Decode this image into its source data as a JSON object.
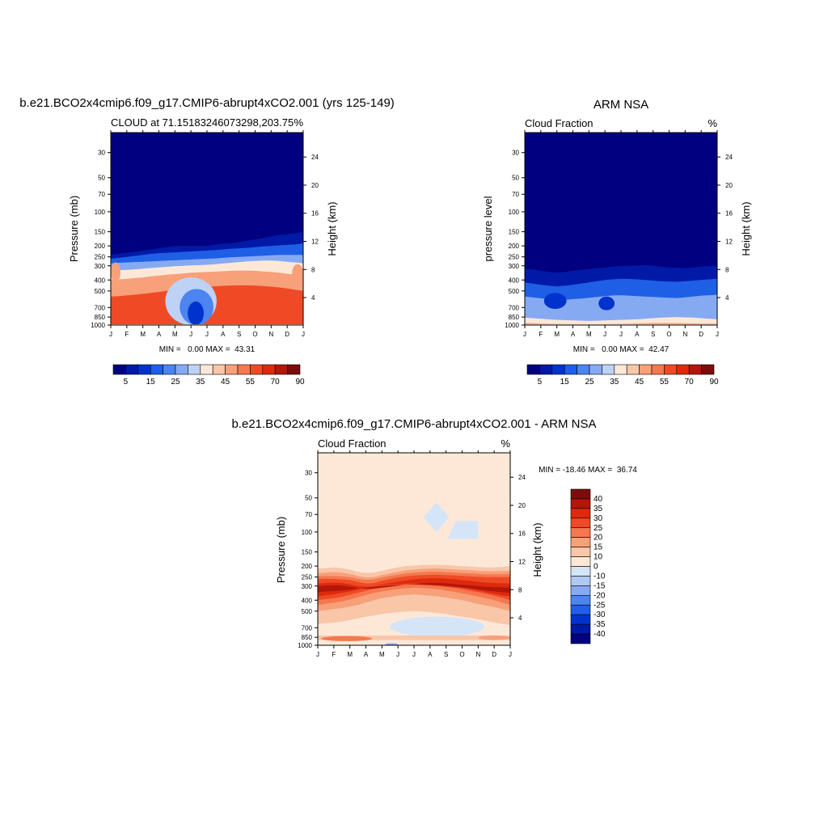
{
  "chart_data": [
    {
      "type": "heatmap",
      "title": "b.e21.BCO2x4cmip6.f09_g17.CMIP6-abrupt4xCO2.001 (yrs 125-149)",
      "left_string": "CLOUD at 71.15183246073298,203.75",
      "right_string": "%",
      "ylabel": "Pressure (mb)",
      "ylabel_right": "Height (km)",
      "xticks": [
        "J",
        "F",
        "M",
        "A",
        "M",
        "J",
        "J",
        "A",
        "S",
        "O",
        "N",
        "D",
        "J"
      ],
      "yticks": [
        30,
        50,
        70,
        100,
        150,
        200,
        250,
        300,
        400,
        500,
        700,
        850,
        1000
      ],
      "yticks_right": [
        24,
        20,
        16,
        12,
        8,
        4
      ],
      "minmax": "MIN =   0.00 MAX =  43.31",
      "colorbar_labels": [
        "5",
        "15",
        "25",
        "35",
        "45",
        "55",
        "70",
        "90"
      ],
      "colorbar_colors": [
        "#000080",
        "#0019a6",
        "#0033cc",
        "#1f5fe6",
        "#4c84f0",
        "#86aaf2",
        "#bed2f6",
        "#fde8d8",
        "#f9c6a8",
        "#f7a07a",
        "#f5784f",
        "#ef4a26",
        "#dd2a0d",
        "#b3160a",
        "#7d0d0c"
      ],
      "contour_bands": [
        {
          "value": 0,
          "profile": [
            240,
            235,
            230,
            225,
            220,
            215,
            210,
            205,
            200,
            200,
            200,
            200,
            200,
            195,
            190,
            190,
            185,
            180,
            175,
            170,
            165,
            160,
            158,
            155,
            150
          ]
        },
        {
          "value": 5,
          "profile": [
            260,
            255,
            250,
            245,
            240,
            235,
            232,
            230,
            228,
            226,
            224,
            222,
            220,
            218,
            215,
            212,
            210,
            208,
            205,
            202,
            200,
            198,
            196,
            194,
            190
          ]
        },
        {
          "value": 15,
          "profile": [
            285,
            282,
            280,
            278,
            276,
            274,
            272,
            270,
            268,
            266,
            264,
            262,
            260,
            258,
            255,
            252,
            250,
            248,
            246,
            244,
            242,
            240,
            240,
            240,
            240
          ]
        },
        {
          "value": 25,
          "profile": [
            330,
            328,
            326,
            322,
            318,
            314,
            310,
            306,
            302,
            300,
            298,
            296,
            294,
            290,
            286,
            282,
            278,
            274,
            272,
            270,
            270,
            272,
            276,
            280,
            285
          ]
        },
        {
          "value": 35,
          "profile": [
            400,
            395,
            390,
            385,
            380,
            372,
            365,
            360,
            355,
            350,
            345,
            342,
            340,
            338,
            335,
            332,
            330,
            330,
            332,
            336,
            340,
            345,
            352,
            360,
            370
          ]
        },
        {
          "value": 45,
          "profile": [
            560,
            555,
            548,
            540,
            530,
            520,
            510,
            500,
            490,
            480,
            472,
            466,
            460,
            455,
            450,
            448,
            446,
            446,
            448,
            452,
            458,
            466,
            476,
            488,
            500
          ]
        }
      ],
      "warm_patches": [
        {
          "value": 35,
          "months": [
            0,
            0.6
          ],
          "p": [
            280,
            420
          ]
        },
        {
          "value": 35,
          "months": [
            11.3,
            12
          ],
          "p": [
            290,
            420
          ]
        }
      ],
      "core": [
        {
          "value": 25,
          "months": [
            3.4,
            6.6
          ],
          "p": [
            380,
            1000
          ]
        },
        {
          "value": 15,
          "months": [
            4.3,
            6.4
          ],
          "p": [
            480,
            1000
          ]
        },
        {
          "value": 5,
          "months": [
            4.8,
            5.8
          ],
          "p": [
            620,
            1000
          ]
        }
      ]
    },
    {
      "type": "heatmap",
      "title": "ARM NSA",
      "left_string": "Cloud Fraction",
      "right_string": "%",
      "ylabel": "pressure level",
      "ylabel_right": "Height (km)",
      "xticks": [
        "J",
        "F",
        "M",
        "A",
        "M",
        "J",
        "J",
        "A",
        "S",
        "O",
        "N",
        "D",
        "J"
      ],
      "yticks": [
        30,
        50,
        70,
        100,
        150,
        200,
        250,
        300,
        400,
        500,
        700,
        850,
        1000
      ],
      "yticks_right": [
        24,
        20,
        16,
        12,
        8,
        4
      ],
      "minmax": "MIN =   0.00 MAX =  42.47",
      "colorbar_labels": [
        "5",
        "15",
        "25",
        "35",
        "45",
        "55",
        "70",
        "90"
      ],
      "colorbar_colors": [
        "#000080",
        "#0019a6",
        "#0033cc",
        "#1f5fe6",
        "#4c84f0",
        "#86aaf2",
        "#bed2f6",
        "#fde8d8",
        "#f9c6a8",
        "#f7a07a",
        "#f5784f",
        "#ef4a26",
        "#dd2a0d",
        "#b3160a",
        "#7d0d0c"
      ],
      "contour_bands": [
        {
          "value": 0,
          "profile": [
            320,
            322,
            330,
            340,
            345,
            340,
            330,
            325,
            320,
            315,
            310,
            305,
            300,
            300,
            298,
            296,
            300,
            305,
            310,
            312,
            314,
            310,
            305,
            300,
            300
          ]
        },
        {
          "value": 5,
          "profile": [
            420,
            430,
            440,
            450,
            455,
            450,
            440,
            430,
            420,
            410,
            400,
            395,
            390,
            392,
            395,
            400,
            405,
            410,
            412,
            415,
            410,
            405,
            400,
            395,
            390
          ]
        },
        {
          "value": 15,
          "profile": [
            560,
            570,
            580,
            590,
            600,
            600,
            590,
            585,
            575,
            565,
            555,
            548,
            545,
            550,
            555,
            560,
            565,
            570,
            575,
            578,
            570,
            560,
            550,
            545,
            540
          ]
        },
        {
          "value": 25,
          "profile": [
            860,
            870,
            880,
            890,
            900,
            905,
            910,
            915,
            920,
            915,
            910,
            905,
            900,
            895,
            890,
            880,
            870,
            860,
            855,
            850,
            855,
            860,
            870,
            880,
            890
          ]
        },
        {
          "value": 35,
          "profile": [
            960,
            965,
            970,
            975,
            978,
            980,
            982,
            984,
            986,
            984,
            982,
            980,
            978,
            975,
            970,
            965,
            960,
            958,
            960,
            962,
            965,
            968,
            970,
            972,
            975
          ]
        }
      ],
      "warm_patches": [],
      "core": [
        {
          "value": 5,
          "months": [
            1.2,
            2.6
          ],
          "p": [
            520,
            720
          ]
        },
        {
          "value": 5,
          "months": [
            4.6,
            5.6
          ],
          "p": [
            560,
            740
          ]
        }
      ]
    },
    {
      "type": "heatmap",
      "title": "b.e21.BCO2x4cmip6.f09_g17.CMIP6-abrupt4xCO2.001 - ARM NSA",
      "left_string": "Cloud Fraction",
      "right_string": "%",
      "ylabel": "Pressure (mb)",
      "ylabel_right": "Height (km)",
      "xticks": [
        "J",
        "F",
        "M",
        "A",
        "M",
        "J",
        "J",
        "A",
        "S",
        "O",
        "N",
        "D",
        "J"
      ],
      "yticks": [
        30,
        50,
        70,
        100,
        150,
        200,
        250,
        300,
        400,
        500,
        700,
        850,
        1000
      ],
      "yticks_right": [
        24,
        20,
        16,
        12,
        8,
        4
      ],
      "minmax": "MIN = -18.46 MAX =  36.74",
      "colorbar_labels": [
        "40",
        "35",
        "30",
        "25",
        "20",
        "15",
        "10",
        "0",
        "-10",
        "-15",
        "-20",
        "-25",
        "-30",
        "-35",
        "-40"
      ],
      "colorbar_colors": [
        "#7d0d0c",
        "#b3160a",
        "#dd2a0d",
        "#ef4a26",
        "#f5784f",
        "#f7a07a",
        "#f9c6a8",
        "#fde8d8",
        "#d5e5f8",
        "#b0c9f2",
        "#86aaf2",
        "#4c84f0",
        "#1f5fe6",
        "#0033cc",
        "#0019a6",
        "#000080"
      ],
      "diff_layers": [
        {
          "color": "#f9c6a8",
          "top": [
            210,
            208,
            205,
            208,
            215,
            225,
            230,
            228,
            220,
            212,
            205,
            200,
            198,
            196,
            195,
            195,
            196,
            198,
            200,
            202,
            204,
            206,
            205,
            204,
            200
          ],
          "bottom": [
            650,
            640,
            630,
            620,
            600,
            580,
            560,
            545,
            530,
            520,
            510,
            505,
            500,
            505,
            510,
            520,
            530,
            545,
            560,
            575,
            590,
            610,
            630,
            650,
            660
          ]
        },
        {
          "color": "#f7a07a",
          "top": [
            230,
            228,
            226,
            228,
            235,
            245,
            252,
            250,
            240,
            232,
            225,
            218,
            215,
            212,
            210,
            210,
            212,
            214,
            216,
            218,
            220,
            222,
            222,
            222,
            220
          ],
          "bottom": [
            500,
            490,
            480,
            470,
            455,
            440,
            420,
            400,
            385,
            375,
            365,
            360,
            355,
            360,
            365,
            372,
            380,
            390,
            400,
            415,
            430,
            445,
            460,
            480,
            500
          ]
        },
        {
          "color": "#f5784f",
          "top": [
            245,
            245,
            245,
            246,
            250,
            258,
            265,
            262,
            252,
            244,
            238,
            232,
            228,
            226,
            224,
            224,
            226,
            228,
            230,
            232,
            234,
            236,
            236,
            236,
            235
          ],
          "bottom": [
            440,
            430,
            420,
            410,
            395,
            378,
            360,
            345,
            335,
            325,
            318,
            314,
            310,
            312,
            315,
            320,
            328,
            338,
            348,
            360,
            372,
            386,
            400,
            420,
            440
          ]
        },
        {
          "color": "#ef4a26",
          "top": [
            260,
            260,
            260,
            262,
            266,
            275,
            285,
            282,
            270,
            260,
            252,
            246,
            242,
            240,
            238,
            238,
            240,
            242,
            244,
            246,
            248,
            250,
            250,
            250,
            250
          ],
          "bottom": [
            400,
            392,
            384,
            374,
            360,
            345,
            330,
            318,
            308,
            300,
            295,
            292,
            290,
            292,
            295,
            300,
            306,
            312,
            320,
            330,
            340,
            352,
            365,
            380,
            400
          ]
        },
        {
          "color": "#dd2a0d",
          "top": [
            285,
            282,
            280,
            282,
            290,
            300,
            305,
            300,
            290,
            282,
            275,
            268,
            262,
            258,
            256,
            256,
            258,
            262,
            266,
            270,
            275,
            280,
            282,
            284,
            285
          ],
          "bottom": [
            370,
            362,
            355,
            345,
            335,
            322,
            310,
            300,
            295,
            290,
            288,
            286,
            284,
            286,
            288,
            292,
            296,
            300,
            308,
            318,
            328,
            340,
            352,
            362,
            370
          ]
        },
        {
          "color": "#b3160a",
          "top": [
            300,
            298,
            296,
            298,
            305,
            312,
            318,
            316,
            310,
            304,
            298,
            292,
            288,
            284,
            282,
            282,
            284,
            288,
            292,
            296,
            300,
            304,
            306,
            308,
            310
          ],
          "bottom": [
            340,
            336,
            332,
            328,
            322,
            316,
            310,
            304,
            300,
            296,
            294,
            292,
            290,
            292,
            294,
            296,
            300,
            304,
            310,
            316,
            322,
            328,
            334,
            340,
            345
          ]
        }
      ],
      "diff_patches": [
        {
          "color": "#d5e5f8",
          "shape": "diamond",
          "months": [
            6.6,
            8.2
          ],
          "p": [
            55,
            100
          ]
        },
        {
          "color": "#d5e5f8",
          "shape": "trap",
          "months": [
            8.1,
            10.0
          ],
          "p": [
            80,
            115
          ]
        },
        {
          "color": "#d5e5f8",
          "shape": "blob",
          "months": [
            4.5,
            10.4
          ],
          "p": [
            560,
            840
          ]
        },
        {
          "color": "#f9c6a8",
          "shape": "band",
          "months": [
            0,
            12
          ],
          "p": [
            820,
            900
          ]
        },
        {
          "color": "#f5784f",
          "shape": "blob",
          "months": [
            0.2,
            3.4
          ],
          "p": [
            830,
            920
          ]
        },
        {
          "color": "#f7a07a",
          "shape": "blob",
          "months": [
            10.0,
            12
          ],
          "p": [
            820,
            900
          ]
        },
        {
          "color": "#86aaf2",
          "shape": "blob",
          "months": [
            4.2,
            5.0
          ],
          "p": [
            960,
            1000
          ]
        }
      ]
    }
  ]
}
